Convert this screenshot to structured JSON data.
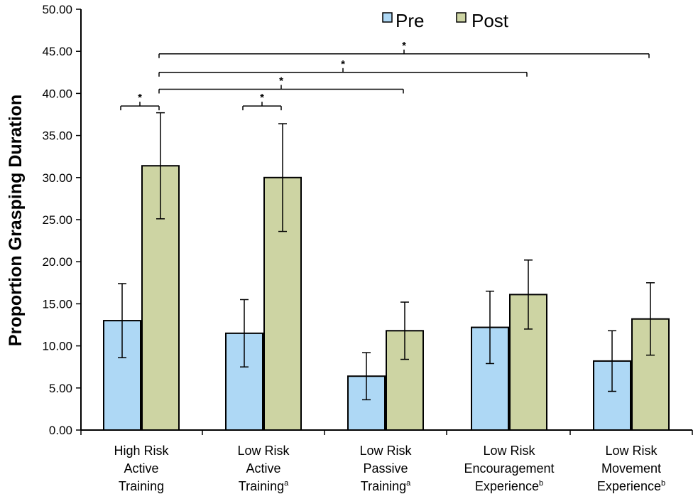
{
  "chart_data": {
    "type": "bar",
    "ylabel": "Proportion Grasping Duration",
    "ylim": [
      0,
      50
    ],
    "yticks": [
      "0.00",
      "5.00",
      "10.00",
      "15.00",
      "20.00",
      "25.00",
      "30.00",
      "35.00",
      "40.00",
      "45.00",
      "50.00"
    ],
    "categories": [
      {
        "lines": [
          "High Risk",
          "Active",
          "Training"
        ],
        "sup": ""
      },
      {
        "lines": [
          "Low Risk",
          "Active",
          "Training"
        ],
        "sup": "a"
      },
      {
        "lines": [
          "Low Risk",
          "Passive",
          "Training"
        ],
        "sup": "a"
      },
      {
        "lines": [
          "Low Risk",
          "Encouragement",
          "Experience"
        ],
        "sup": "b"
      },
      {
        "lines": [
          "Low Risk",
          "Movement",
          "Experience"
        ],
        "sup": "b"
      }
    ],
    "series": [
      {
        "name": "Pre",
        "color": "#aed8f5",
        "values": [
          13.0,
          11.5,
          6.4,
          12.2,
          8.2
        ],
        "errors": [
          4.4,
          4.0,
          2.8,
          4.3,
          3.6
        ]
      },
      {
        "name": "Post",
        "color": "#cdd4a3",
        "values": [
          31.4,
          30.0,
          11.8,
          16.1,
          13.2
        ],
        "errors": [
          6.3,
          6.4,
          3.4,
          4.1,
          4.3
        ]
      }
    ],
    "legend": {
      "position": "top-center",
      "items": [
        "Pre",
        "Post"
      ]
    },
    "annotations": [
      {
        "type": "bracket",
        "from": "High Risk Active Training Pre",
        "to": "High Risk Active Training Post",
        "label": "*",
        "y": 38.5
      },
      {
        "type": "bracket",
        "from": "Low Risk Active Training Pre",
        "to": "Low Risk Active Training Post",
        "label": "*",
        "y": 38.5
      },
      {
        "type": "bracket",
        "from": "High Risk Active Training Post",
        "to": "Low Risk Passive Training Post",
        "label": "*",
        "y": 40.5
      },
      {
        "type": "bracket",
        "from": "High Risk Active Training Post",
        "to": "Low Risk Encouragement Experience Post",
        "label": "*",
        "y": 42.5
      },
      {
        "type": "bracket",
        "from": "High Risk Active Training Post",
        "to": "Low Risk Movement Experience Post",
        "label": "*",
        "y": 44.7
      }
    ]
  }
}
